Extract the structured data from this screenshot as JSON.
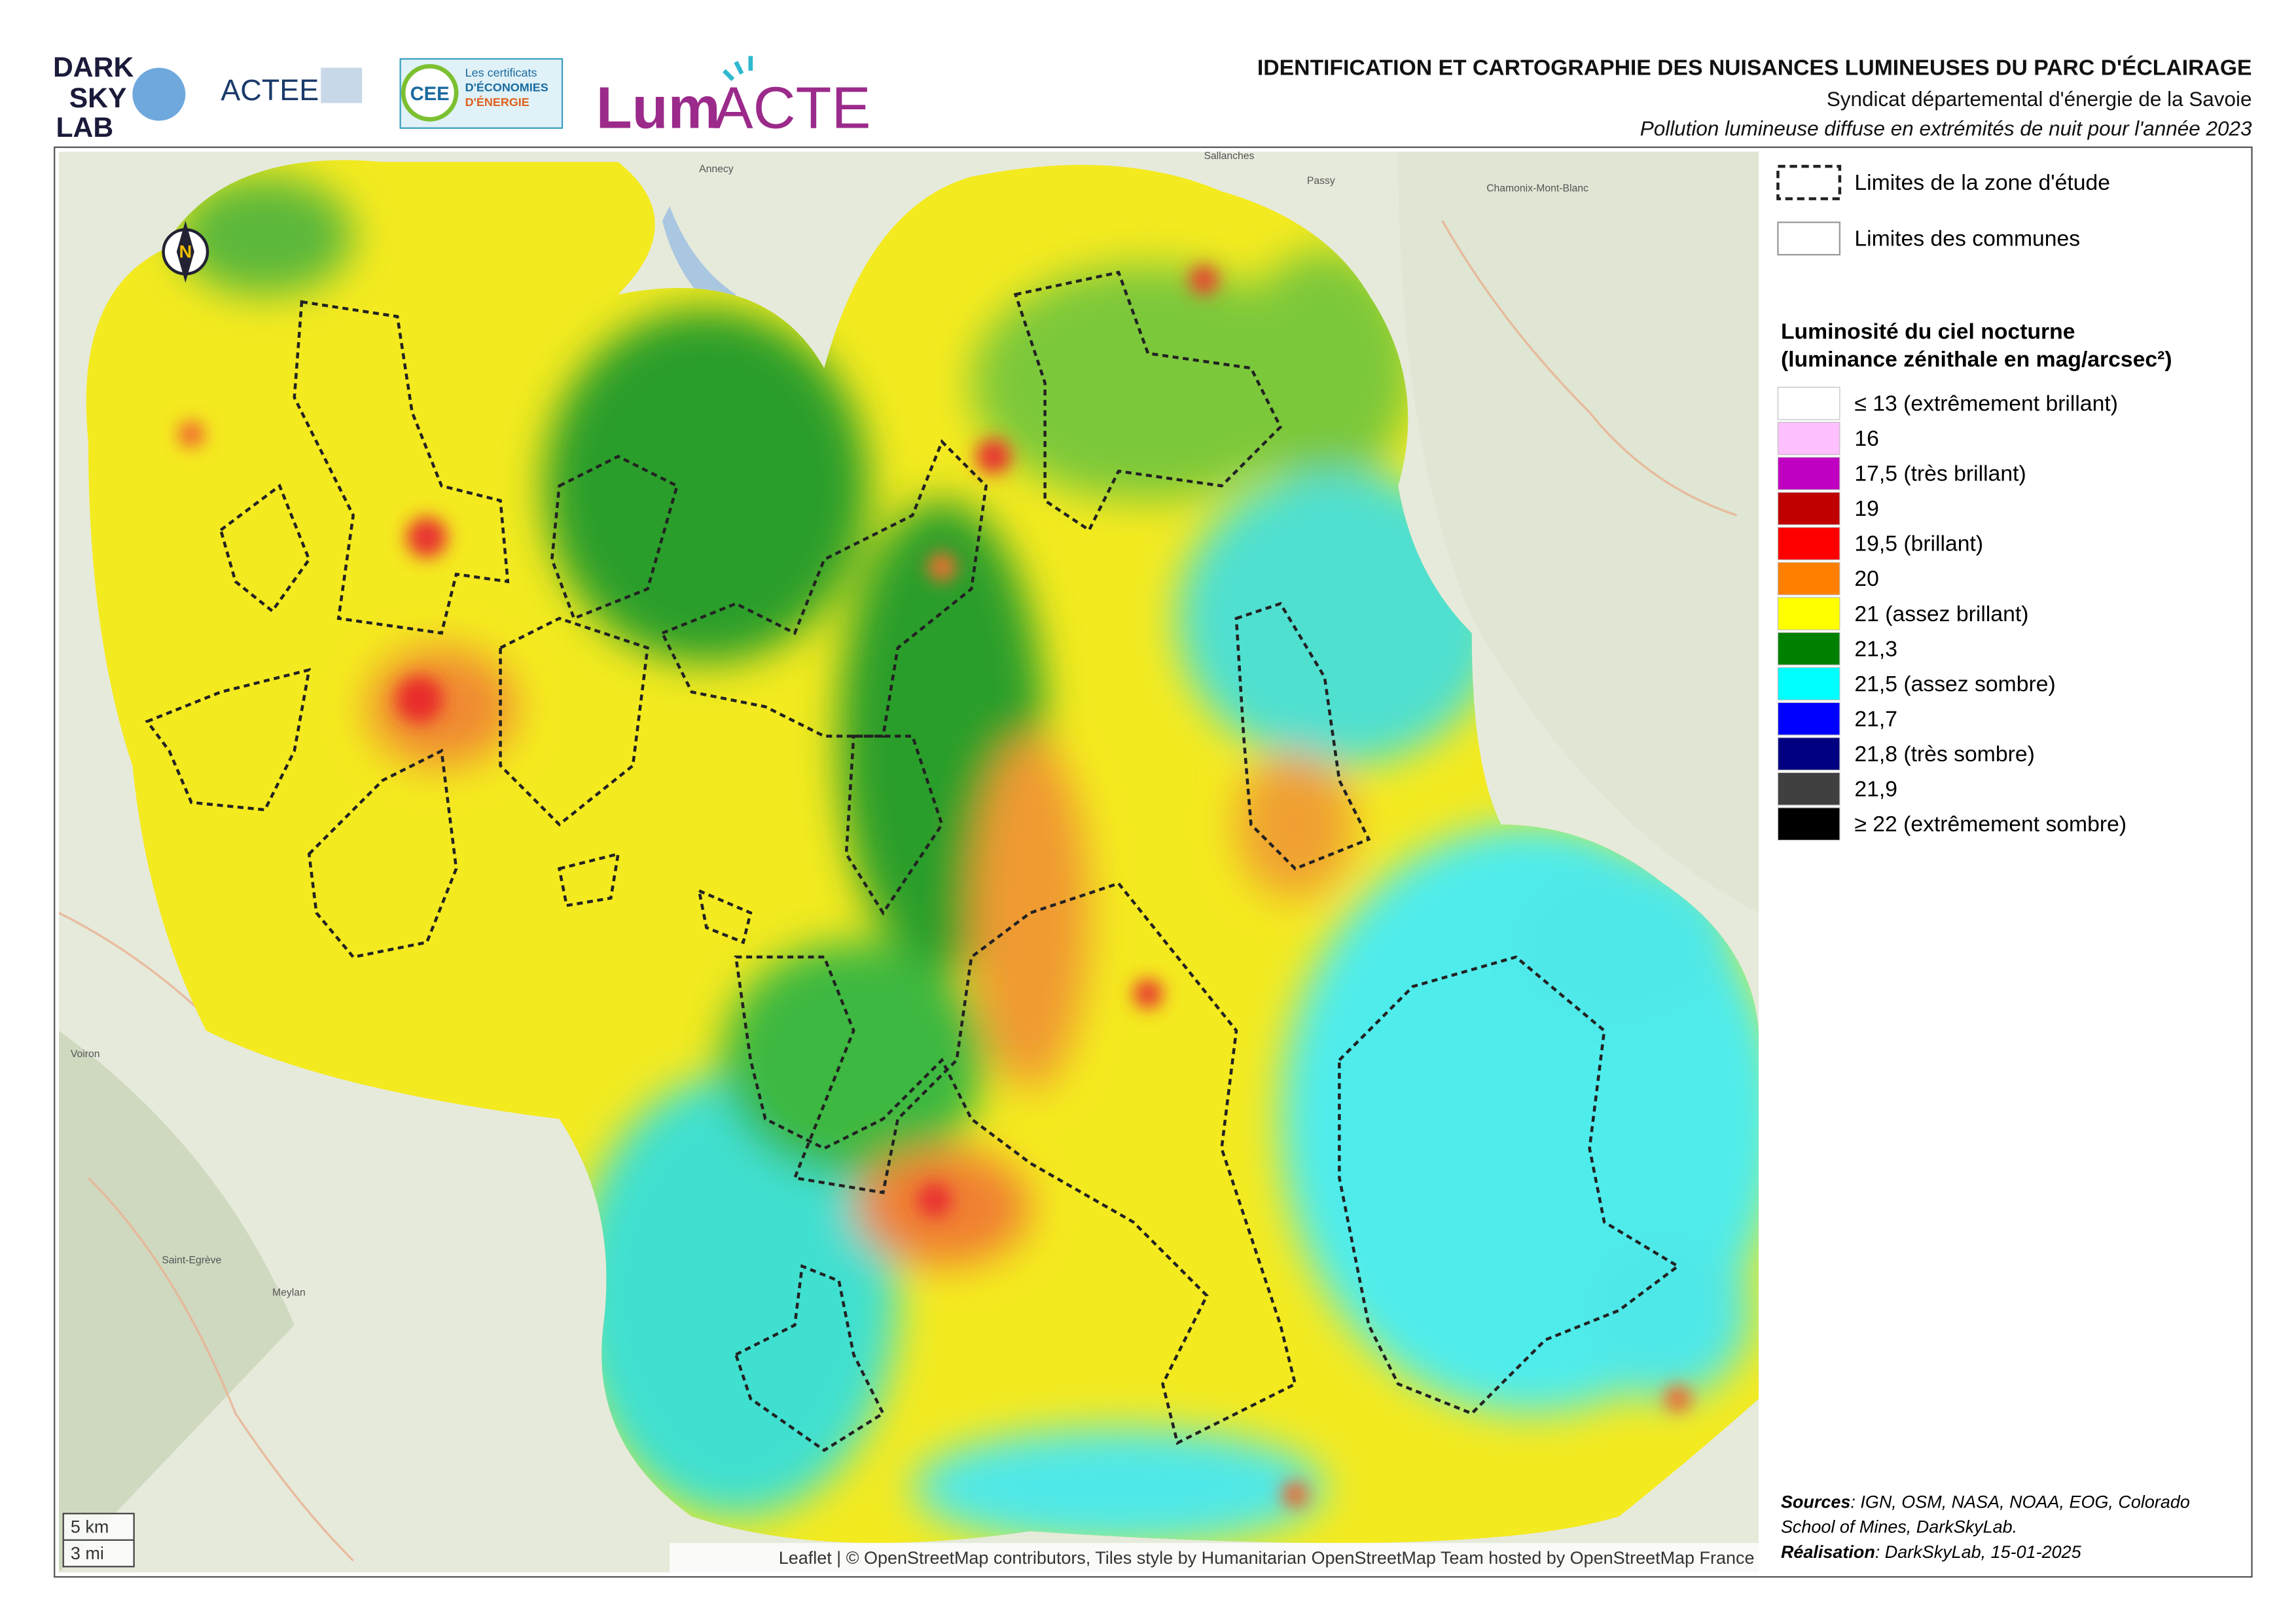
{
  "header": {
    "title": "IDENTIFICATION ET CARTOGRAPHIE DES NUISANCES LUMINEUSES DU PARC D'ÉCLAIRAGE",
    "subtitle": "Syndicat départemental d'énergie de la Savoie",
    "description": "Pollution lumineuse diffuse en extrémités de nuit pour l'année 2023"
  },
  "logos": {
    "darksky": [
      "DARK",
      "SKY",
      "LAB"
    ],
    "actee": "ACTEE",
    "cee": "CEE",
    "cee_text": [
      "Les certificats",
      "D'ÉCONOMIES",
      "D'ÉNERGIE"
    ],
    "lumacte": [
      "Lum",
      "ACTE"
    ]
  },
  "legend": {
    "boundaries": [
      "Limites de la zone d'étude",
      "Limites des communes"
    ],
    "title": [
      "Luminosité du ciel nocturne",
      "(luminance zénithale en mag/arcsec²)"
    ],
    "items": [
      {
        "label": "≤ 13 (extrêmement brillant)",
        "color": "#ffffff"
      },
      {
        "label": "16",
        "color": "#ffc0ff"
      },
      {
        "label": "17,5 (très brillant)",
        "color": "#c000c0"
      },
      {
        "label": "19",
        "color": "#c00000"
      },
      {
        "label": "19,5 (brillant)",
        "color": "#ff0000"
      },
      {
        "label": "20",
        "color": "#ff8000"
      },
      {
        "label": "21 (assez brillant)",
        "color": "#ffff00"
      },
      {
        "label": "21,3",
        "color": "#008000"
      },
      {
        "label": "21,5 (assez sombre)",
        "color": "#00ffff"
      },
      {
        "label": "21,7",
        "color": "#0000ff"
      },
      {
        "label": "21,8 (très sombre)",
        "color": "#000080"
      },
      {
        "label": "21,9",
        "color": "#404040"
      },
      {
        "label": "≥ 22 (extrêmement sombre)",
        "color": "#000000"
      }
    ]
  },
  "sources": {
    "label": "Sources",
    "text": ": IGN, OSM, NASA, NOAA, EOG, Colorado",
    "text2": "School of Mines, DarkSkyLab.",
    "realisation_label": "Réalisation",
    "realisation": ": DarkSkyLab, 15-01-2025"
  },
  "attribution": "Leaflet | © OpenStreetMap contributors, Tiles style by Humanitarian OpenStreetMap Team hosted by OpenStreetMap France",
  "scale": [
    "5 km",
    "3 mi"
  ],
  "places": [
    "Annecy",
    "Sallanches",
    "Passy",
    "Chamonix-Mont-Blanc",
    "Meylan",
    "Saint-Egrève",
    "Voiron"
  ]
}
